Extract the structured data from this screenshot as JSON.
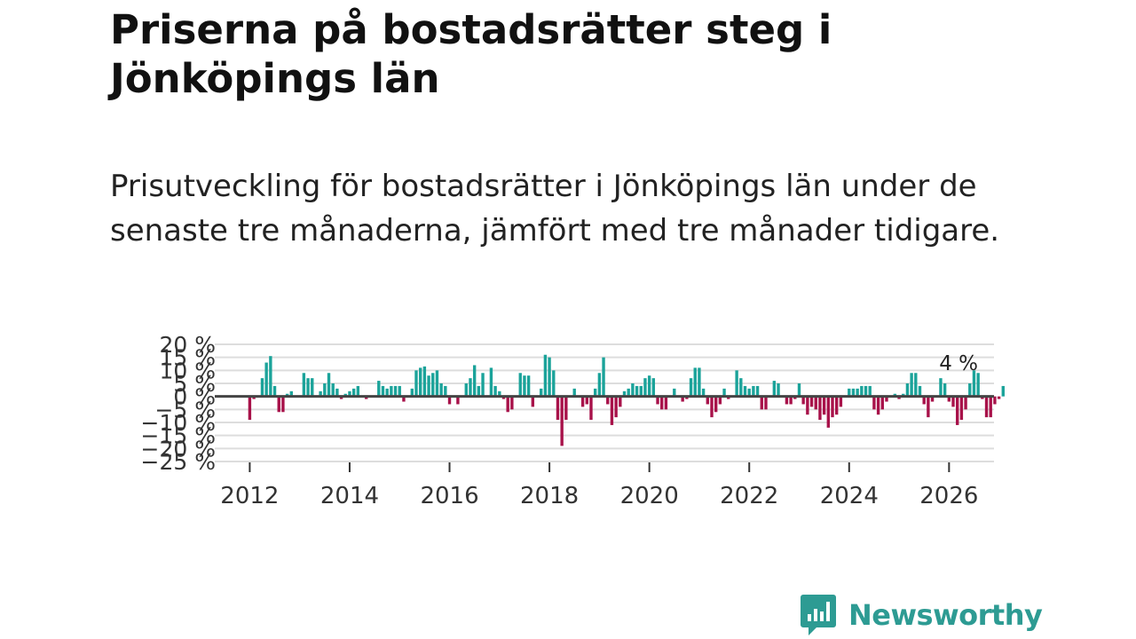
{
  "title": "Priserna på bostadsrätter steg i Jönköpings län",
  "subtitle": "Prisutveckling för bostadsrätter i Jönköpings län under de senaste tre månaderna, jämfört med tre månader tidigare.",
  "brand": {
    "name": "Newsworthy"
  },
  "colors": {
    "positive": "#1ba39a",
    "negative": "#a8124a",
    "grid": "#dddddd",
    "zero_line": "#444444",
    "brand": "#2d9b93"
  },
  "chart_data": {
    "type": "bar",
    "title": "",
    "xlabel": "",
    "ylabel": "",
    "ylim": [
      -25,
      20
    ],
    "xlim": [
      2011.3,
      2026.9
    ],
    "x_ticks": [
      2012,
      2014,
      2016,
      2018,
      2020,
      2022,
      2024,
      2026
    ],
    "x_tick_labels": [
      "2012",
      "2014",
      "2016",
      "2018",
      "2020",
      "2022",
      "2024",
      "2026"
    ],
    "y_ticks": [
      20,
      15,
      10,
      5,
      0,
      -5,
      -10,
      -15,
      -20,
      -25
    ],
    "y_tick_labels": [
      "20 %",
      "15 %",
      "10 %",
      "5 %",
      "0 %",
      "−5 %",
      "−10 %",
      "−15 %",
      "−20 %",
      "−25 %"
    ],
    "annotation": "4 %",
    "series": [
      {
        "name": "Prisutveckling",
        "start": 2012.0,
        "step": 0.08333,
        "values": [
          -9,
          -1,
          0,
          7,
          13,
          15.5,
          4,
          -6,
          -6,
          1,
          2,
          0,
          0,
          9,
          7,
          7,
          0,
          2,
          5,
          9,
          5,
          3,
          -1,
          1,
          2,
          3,
          4,
          0,
          -1,
          0,
          0,
          6,
          4,
          3,
          4,
          4,
          4,
          -2,
          0,
          3,
          10,
          11,
          11.5,
          8,
          9,
          10,
          5,
          4,
          -3,
          0,
          -3,
          0,
          5,
          7,
          12,
          4,
          9,
          0,
          11,
          4,
          2,
          -1,
          -6,
          -5,
          0,
          9,
          8,
          8,
          -4,
          0,
          3,
          16,
          15,
          10,
          -9,
          -19,
          -9,
          0,
          3,
          0,
          -4,
          -3,
          -9,
          3,
          9,
          15,
          -3,
          -11,
          -8,
          -4,
          2,
          3,
          5,
          4,
          4,
          7,
          8,
          7,
          -3,
          -5,
          -5,
          0,
          3,
          0,
          -2,
          -1,
          7,
          11,
          11,
          3,
          -3,
          -8,
          -6,
          -3,
          3,
          -1,
          0,
          10,
          7,
          4,
          3,
          4,
          4,
          -5,
          -5,
          0,
          6,
          5,
          0,
          -3,
          -3,
          -1,
          5,
          -3,
          -7,
          -4,
          -5,
          -9,
          -7,
          -12,
          -8,
          -7,
          -4,
          0,
          3,
          3,
          3,
          4,
          4,
          4,
          -5,
          -7,
          -5,
          -2,
          0,
          1,
          -1,
          1,
          5,
          9,
          9,
          4,
          -3,
          -8,
          -2,
          0,
          7,
          5,
          -2,
          -4,
          -11,
          -9,
          -5,
          5,
          10,
          9,
          -1,
          -8,
          -8,
          -3,
          -1,
          4
        ]
      }
    ]
  }
}
